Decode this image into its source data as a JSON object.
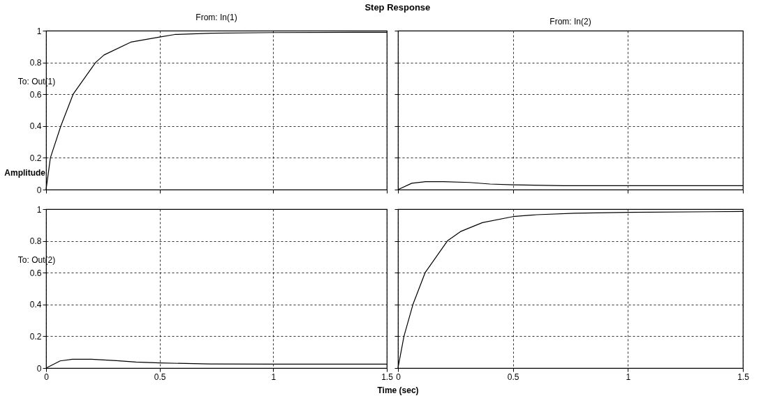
{
  "chart_data": [
    {
      "type": "line",
      "title": "From: In(1)",
      "ylabel": "To: Out(1)",
      "annotations": [
        "Step Response",
        "Amplitude"
      ],
      "x": [
        0,
        0.019,
        0.065,
        0.119,
        0.218,
        0.255,
        0.373,
        0.5,
        0.567,
        0.727,
        1.0,
        1.5
      ],
      "series": [
        {
          "color": "#000000",
          "values": [
            0,
            0.2,
            0.4,
            0.6,
            0.8,
            0.847,
            0.928,
            0.96,
            0.976,
            0.984,
            0.988,
            0.99
          ]
        }
      ],
      "xlim": [
        0,
        1.5
      ],
      "ylim": [
        0,
        1
      ],
      "xticks": [
        0,
        0.5,
        1,
        1.5
      ],
      "yticks": [
        0,
        0.2,
        0.4,
        0.6,
        0.8,
        1
      ],
      "tick_labels": "y",
      "grid": true,
      "marker": "none",
      "line_style": "solid"
    },
    {
      "type": "line",
      "title": "From: In(2)",
      "x": [
        0,
        0.06,
        0.12,
        0.2,
        0.31,
        0.4,
        0.5,
        0.72,
        1.0,
        1.5
      ],
      "series": [
        {
          "color": "#000000",
          "values": [
            0,
            0.04,
            0.05,
            0.05,
            0.045,
            0.035,
            0.03,
            0.025,
            0.025,
            0.025
          ]
        }
      ],
      "xlim": [
        0,
        1.5
      ],
      "ylim": [
        0,
        1
      ],
      "xticks": [
        0,
        0.5,
        1,
        1.5
      ],
      "yticks": [
        0,
        0.2,
        0.4,
        0.6,
        0.8,
        1
      ],
      "tick_labels": false,
      "grid": true,
      "marker": "none",
      "line_style": "solid"
    },
    {
      "type": "line",
      "ylabel": "To: Out(2)",
      "x": [
        0,
        0.062,
        0.116,
        0.2,
        0.31,
        0.395,
        0.5,
        0.72,
        1.0,
        1.5
      ],
      "series": [
        {
          "color": "#000000",
          "values": [
            0,
            0.045,
            0.055,
            0.055,
            0.047,
            0.038,
            0.032,
            0.026,
            0.025,
            0.025
          ]
        }
      ],
      "xlim": [
        0,
        1.5
      ],
      "ylim": [
        0,
        1
      ],
      "xticks": [
        0,
        0.5,
        1,
        1.5
      ],
      "yticks": [
        0,
        0.2,
        0.4,
        0.6,
        0.8,
        1
      ],
      "grid": true,
      "marker": "none",
      "line_style": "solid"
    },
    {
      "type": "line",
      "xlabel": "Time (sec)",
      "x": [
        0,
        0.026,
        0.065,
        0.118,
        0.215,
        0.272,
        0.367,
        0.5,
        0.604,
        0.77,
        1.0,
        1.5
      ],
      "series": [
        {
          "color": "#000000",
          "values": [
            0,
            0.2,
            0.4,
            0.6,
            0.8,
            0.859,
            0.915,
            0.953,
            0.965,
            0.974,
            0.98,
            0.985
          ]
        }
      ],
      "xlim": [
        0,
        1.5
      ],
      "ylim": [
        0,
        1
      ],
      "xticks": [
        0,
        0.5,
        1,
        1.5
      ],
      "yticks": [
        0,
        0.2,
        0.4,
        0.6,
        0.8,
        1
      ],
      "tick_labels": "x",
      "grid": true,
      "marker": "none",
      "line_style": "solid"
    }
  ]
}
